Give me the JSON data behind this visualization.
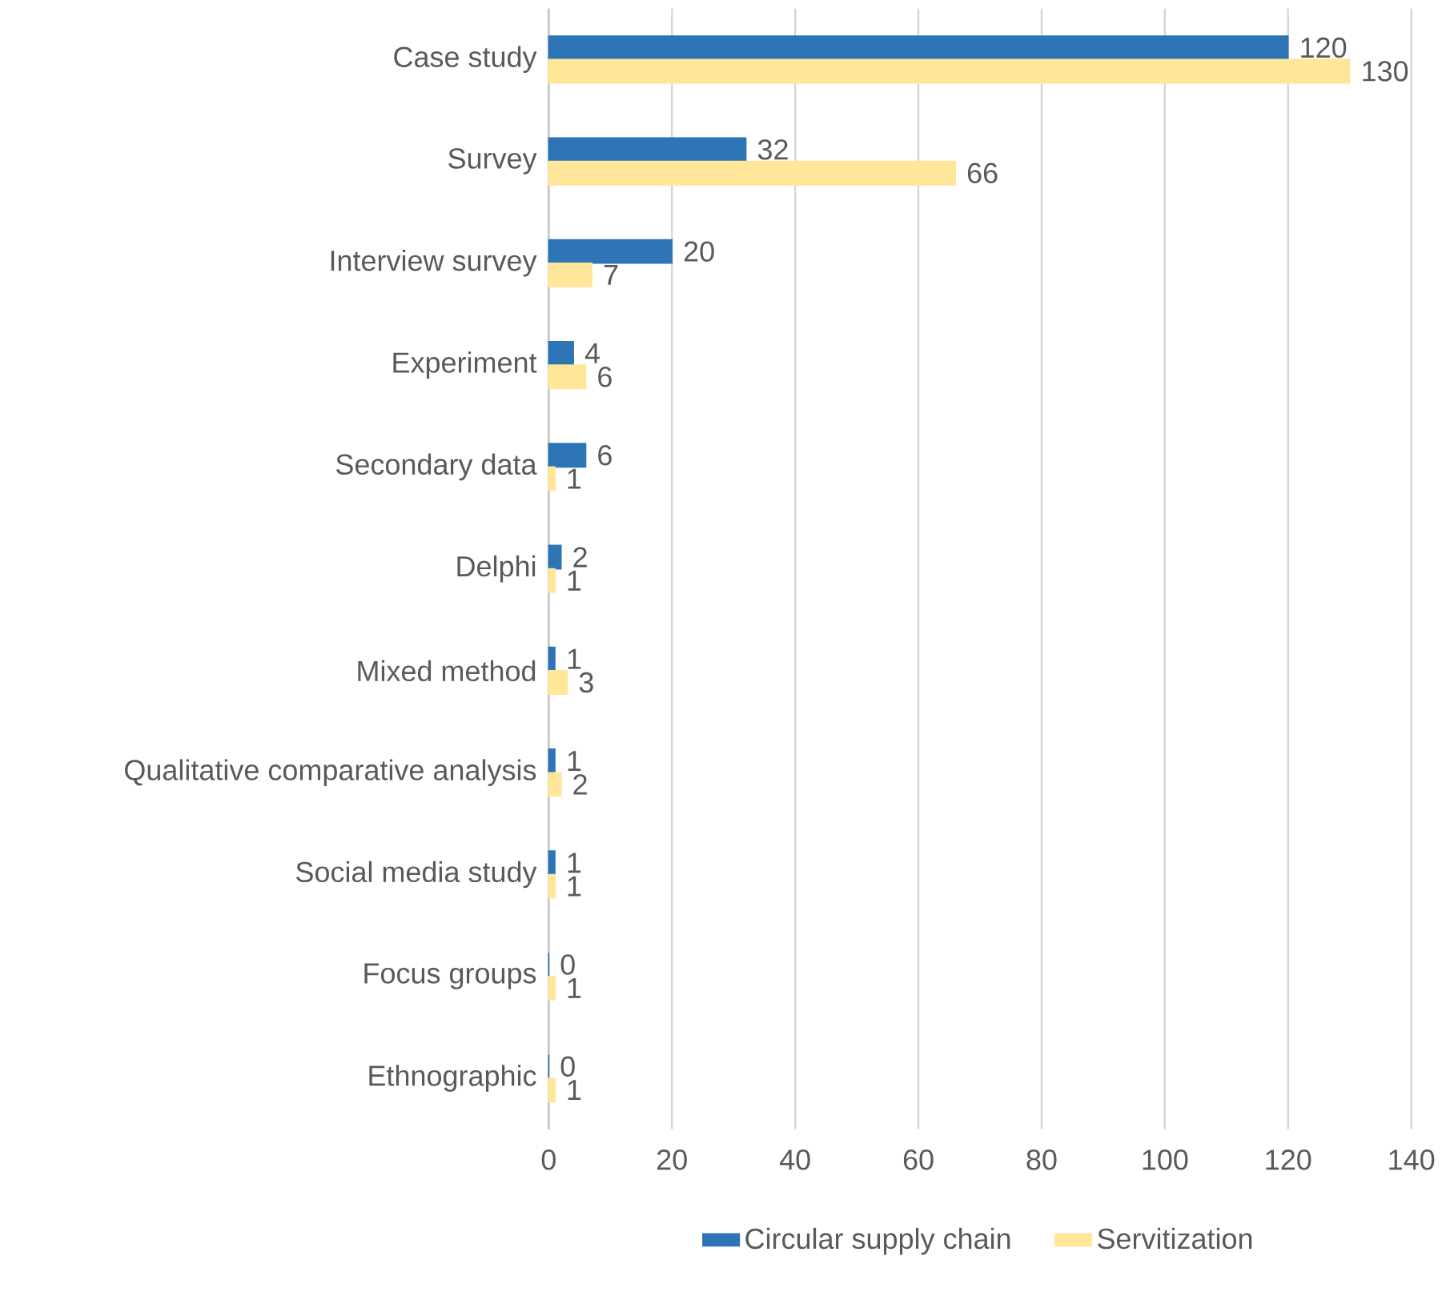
{
  "chart_data": {
    "type": "bar",
    "orientation": "horizontal",
    "categories": [
      "Case study",
      "Survey",
      "Interview survey",
      "Experiment",
      "Secondary data",
      "Delphi",
      "Mixed method",
      "Qualitative comparative analysis",
      "Social media study",
      "Focus groups",
      "Ethnographic"
    ],
    "series": [
      {
        "name": "Circular supply chain",
        "color": "#2e75b6",
        "values": [
          120,
          32,
          20,
          4,
          6,
          2,
          1,
          1,
          1,
          0,
          0
        ]
      },
      {
        "name": "Servitization",
        "color": "#ffe699",
        "values": [
          130,
          66,
          7,
          6,
          1,
          1,
          3,
          2,
          1,
          1,
          1
        ]
      }
    ],
    "xlim": [
      0,
      140
    ],
    "xticks": [
      0,
      20,
      40,
      60,
      80,
      100,
      120,
      140
    ],
    "grid": "x",
    "legend": "bottom",
    "data_labels": true
  }
}
